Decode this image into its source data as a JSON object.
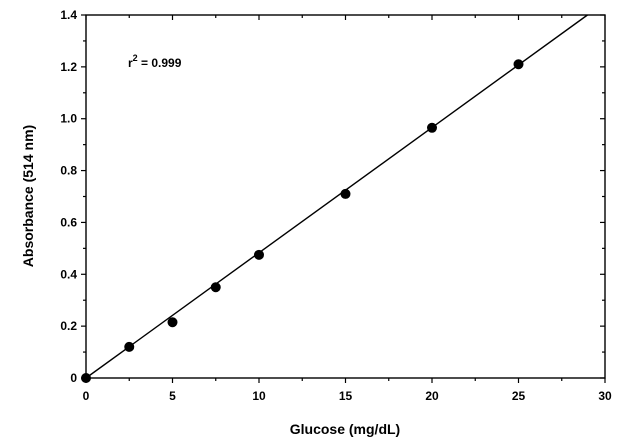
{
  "chart_data": {
    "type": "scatter",
    "xlabel": "Glucose (mg/dL)",
    "ylabel": "Absorbance (514 nm)",
    "xlim": [
      0,
      30
    ],
    "ylim": [
      0,
      1.4
    ],
    "x_ticks": [
      0,
      5,
      10,
      15,
      20,
      25,
      30
    ],
    "y_ticks": [
      0,
      0.2,
      0.4,
      0.6,
      0.8,
      1.0,
      1.2,
      1.4
    ],
    "x_tick_labels": [
      "0",
      "5",
      "10",
      "15",
      "20",
      "25",
      "30"
    ],
    "y_tick_labels": [
      "0",
      "0.2",
      "0.4",
      "0.6",
      "0.8",
      "1.0",
      "1.2",
      "1.4"
    ],
    "grid": false,
    "series": [
      {
        "x": [
          0,
          2.5,
          5,
          7.5,
          10,
          15,
          20,
          25
        ],
        "y": [
          0,
          0.12,
          0.215,
          0.35,
          0.475,
          0.71,
          0.965,
          1.21
        ]
      }
    ],
    "fit_line": {
      "slope": 0.0483,
      "intercept": 0
    },
    "annotation": {
      "base": "r",
      "superscript": "2",
      "rest": " = 0.999"
    }
  }
}
